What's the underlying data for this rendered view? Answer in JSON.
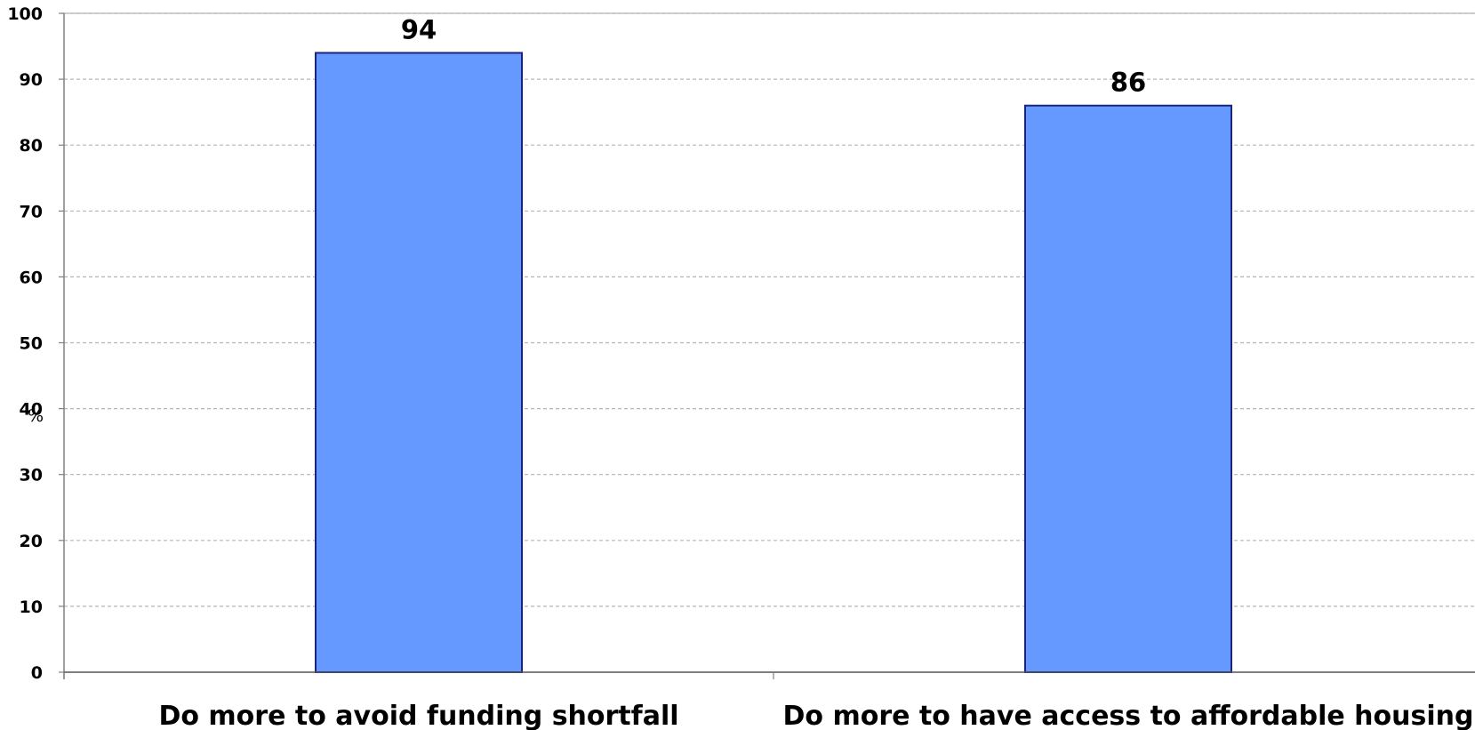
{
  "chart_data": {
    "type": "bar",
    "categories": [
      "Do more to avoid funding shortfall",
      "Do more to have access to affordable housing"
    ],
    "values": [
      94,
      86
    ],
    "data_labels": [
      "94",
      "86"
    ],
    "ylabel": "%",
    "ylim": [
      0,
      100
    ],
    "yticks": [
      0,
      10,
      20,
      30,
      40,
      50,
      60,
      70,
      80,
      90,
      100
    ],
    "grid": true,
    "grid_style": "dashed",
    "legend": "none",
    "bar_color": "#6699ff",
    "bar_edge_color": "#1a237e"
  }
}
